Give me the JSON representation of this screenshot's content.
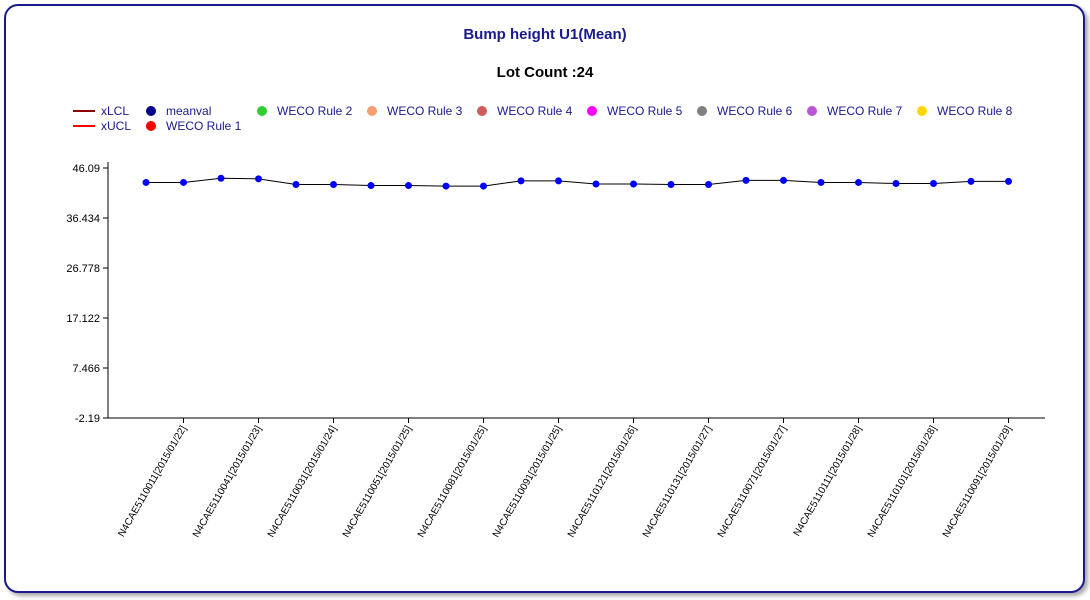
{
  "chart_data": {
    "type": "line",
    "title": "Bump height U1(Mean)",
    "subtitle": "Lot Count :24",
    "ylim": [
      -2.19,
      46.09
    ],
    "y_ticks": [
      "46.09",
      "36.434",
      "26.778",
      "17.122",
      "7.466",
      "-2.19"
    ],
    "x_tick_labels": [
      "N4CAE5110011[2015/01/22]",
      "N4CAE5110041[2015/01/23]",
      "N4CAE5110031[2015/01/24]",
      "N4CAE5110051[2015/01/25]",
      "N4CAE5110081[2015/01/25]",
      "N4CAE5110091[2015/01/25]",
      "N4CAE5110121[2015/01/26]",
      "N4CAE5110131[2015/01/27]",
      "N4CAE5110071[2015/01/27]",
      "N4CAE5110111[2015/01/28]",
      "N4CAE5110101[2015/01/28]",
      "N4CAE5110091[2015/01/29]"
    ],
    "legend": [
      {
        "label": "xLCL",
        "kind": "line",
        "color": "#8b0000"
      },
      {
        "label": "xUCL",
        "kind": "line",
        "color": "#ff0000"
      },
      {
        "label": "meanval",
        "kind": "dot",
        "color": "#00008b"
      },
      {
        "label": "WECO Rule 1",
        "kind": "dot",
        "color": "#ff0000"
      },
      {
        "label": "WECO Rule 2",
        "kind": "dot",
        "color": "#32cd32"
      },
      {
        "label": "WECO Rule 3",
        "kind": "dot",
        "color": "#f4a070"
      },
      {
        "label": "WECO Rule 4",
        "kind": "dot",
        "color": "#cd5c5c"
      },
      {
        "label": "WECO Rule 5",
        "kind": "dot",
        "color": "#ff00ff"
      },
      {
        "label": "WECO Rule 6",
        "kind": "dot",
        "color": "#808080"
      },
      {
        "label": "WECO Rule 7",
        "kind": "dot",
        "color": "#ba55d3"
      },
      {
        "label": "WECO Rule 8",
        "kind": "dot",
        "color": "#ffd700"
      }
    ],
    "series": [
      {
        "name": "meanval",
        "color": "#0000ff",
        "values": [
          43.3,
          43.3,
          44.1,
          44.0,
          42.9,
          42.9,
          42.7,
          42.7,
          42.6,
          42.6,
          43.6,
          43.6,
          43.0,
          43.0,
          42.9,
          42.9,
          43.7,
          43.7,
          43.3,
          43.3,
          43.1,
          43.1,
          43.5,
          43.5
        ]
      }
    ],
    "grid": false
  }
}
